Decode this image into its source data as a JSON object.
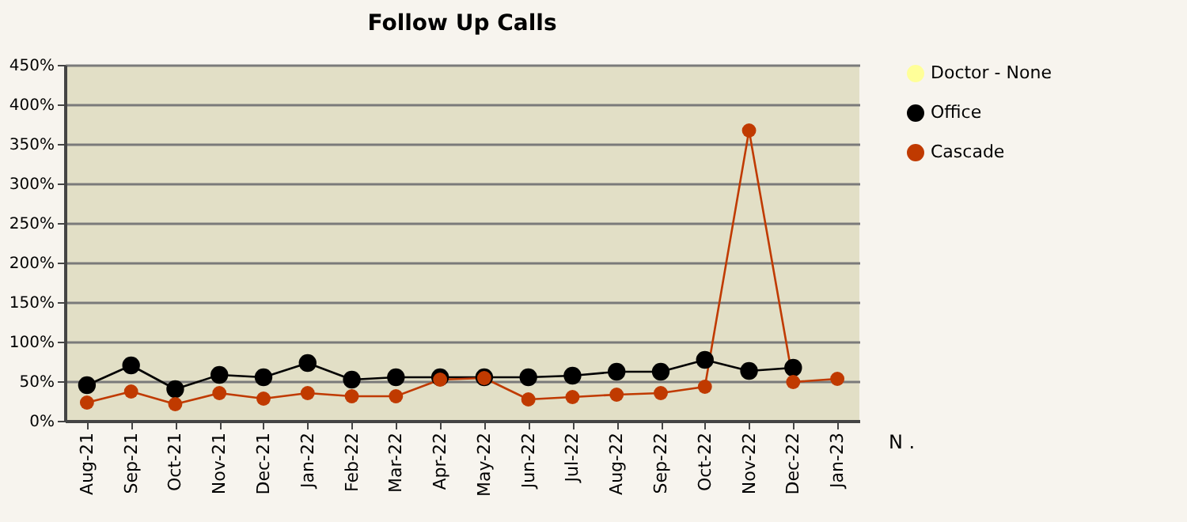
{
  "chart_data": {
    "type": "line",
    "title": "Follow Up Calls",
    "xlabel": "N .",
    "categories": [
      "Aug-21",
      "Sep-21",
      "Oct-21",
      "Nov-21",
      "Dec-21",
      "Jan-22",
      "Feb-22",
      "Mar-22",
      "Apr-22",
      "May-22",
      "Jun-22",
      "Jul-22",
      "Aug-22",
      "Sep-22",
      "Oct-22",
      "Nov-22",
      "Dec-22",
      "Jan-23"
    ],
    "series": [
      {
        "name": "Doctor - None",
        "color": "#ffff99",
        "values": [
          null,
          null,
          null,
          null,
          null,
          null,
          null,
          null,
          null,
          null,
          null,
          null,
          null,
          null,
          null,
          null,
          null,
          null
        ]
      },
      {
        "name": "Office",
        "color": "#000000",
        "values": [
          45,
          70,
          40,
          58,
          55,
          73,
          52,
          55,
          55,
          55,
          55,
          57,
          62,
          62,
          77,
          63,
          67,
          null
        ]
      },
      {
        "name": "Cascade",
        "color": "#c03a00",
        "values": [
          23,
          37,
          21,
          35,
          28,
          35,
          31,
          31,
          52,
          54,
          27,
          30,
          33,
          35,
          43,
          367,
          49,
          53
        ]
      }
    ],
    "ylim": [
      0,
      450
    ],
    "yticks": [
      {
        "value": 0,
        "label": "0%"
      },
      {
        "value": 50,
        "label": "50%"
      },
      {
        "value": 100,
        "label": "100%"
      },
      {
        "value": 150,
        "label": "150%"
      },
      {
        "value": 200,
        "label": "200%"
      },
      {
        "value": 250,
        "label": "250%"
      },
      {
        "value": 300,
        "label": "300%"
      },
      {
        "value": 350,
        "label": "350%"
      },
      {
        "value": 400,
        "label": "400%"
      },
      {
        "value": 450,
        "label": "450%"
      }
    ],
    "grid": "y",
    "legend": "right",
    "marker": "circle",
    "line_style": "solid"
  }
}
